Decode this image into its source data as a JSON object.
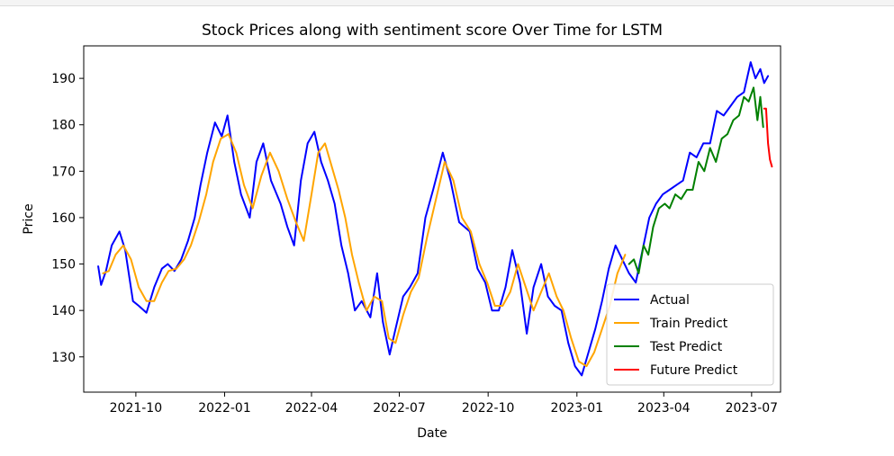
{
  "chart_data": {
    "type": "line",
    "title": "Stock Prices along with sentiment score Over Time for LSTM",
    "xlabel": "Date",
    "ylabel": "Price",
    "x_range": [
      "2021-08-08",
      "2023-07-31"
    ],
    "ylim": [
      122.4,
      197.0
    ],
    "x_ticks": [
      "2021-10",
      "2022-01",
      "2022-04",
      "2022-07",
      "2022-10",
      "2023-01",
      "2023-04",
      "2023-07"
    ],
    "y_ticks": [
      130,
      140,
      150,
      160,
      170,
      180,
      190
    ],
    "grid": false,
    "legend_placement": "lower right",
    "series": [
      {
        "name": "Actual",
        "color": "#0000ff",
        "x": [
          "2021-08-23",
          "2021-08-26",
          "2021-08-31",
          "2021-09-06",
          "2021-09-14",
          "2021-09-20",
          "2021-09-28",
          "2021-10-04",
          "2021-10-12",
          "2021-10-20",
          "2021-10-28",
          "2021-11-03",
          "2021-11-10",
          "2021-11-17",
          "2021-11-24",
          "2021-12-01",
          "2021-12-07",
          "2021-12-14",
          "2021-12-22",
          "2021-12-29",
          "2022-01-04",
          "2022-01-11",
          "2022-01-18",
          "2022-01-27",
          "2022-02-03",
          "2022-02-10",
          "2022-02-18",
          "2022-02-28",
          "2022-03-07",
          "2022-03-14",
          "2022-03-21",
          "2022-03-28",
          "2022-04-04",
          "2022-04-11",
          "2022-04-18",
          "2022-04-25",
          "2022-05-02",
          "2022-05-09",
          "2022-05-16",
          "2022-05-23",
          "2022-06-01",
          "2022-06-08",
          "2022-06-14",
          "2022-06-21",
          "2022-06-27",
          "2022-07-05",
          "2022-07-12",
          "2022-07-20",
          "2022-07-28",
          "2022-08-05",
          "2022-08-15",
          "2022-08-23",
          "2022-09-01",
          "2022-09-12",
          "2022-09-20",
          "2022-09-28",
          "2022-10-05",
          "2022-10-12",
          "2022-10-19",
          "2022-10-26",
          "2022-11-03",
          "2022-11-10",
          "2022-11-17",
          "2022-11-25",
          "2022-12-02",
          "2022-12-09",
          "2022-12-16",
          "2022-12-23",
          "2022-12-30",
          "2023-01-06",
          "2023-01-13",
          "2023-01-20",
          "2023-01-27",
          "2023-02-03",
          "2023-02-10",
          "2023-02-17",
          "2023-02-24",
          "2023-03-03",
          "2023-03-10",
          "2023-03-17",
          "2023-03-24",
          "2023-03-31",
          "2023-04-07",
          "2023-04-14",
          "2023-04-21",
          "2023-04-28",
          "2023-05-05",
          "2023-05-12",
          "2023-05-19",
          "2023-05-26",
          "2023-06-02",
          "2023-06-09",
          "2023-06-16",
          "2023-06-23",
          "2023-06-30",
          "2023-07-05",
          "2023-07-10",
          "2023-07-14",
          "2023-07-18"
        ],
        "values": [
          149.5,
          145.5,
          148.5,
          154,
          157,
          153,
          142,
          141,
          139.5,
          145,
          149,
          150,
          148.5,
          151,
          155,
          160,
          167,
          174,
          180.5,
          177.5,
          182,
          172,
          165,
          160,
          172,
          176,
          168,
          163,
          158,
          154,
          168,
          176,
          178.5,
          172,
          168,
          163,
          154,
          148,
          140,
          142,
          138.5,
          148,
          137.5,
          130.5,
          136,
          143,
          145,
          148,
          160,
          166,
          174,
          168,
          159,
          157,
          149,
          146,
          140,
          140,
          145,
          153,
          146,
          135,
          145,
          150,
          143,
          141,
          140,
          133,
          128,
          126,
          131,
          136,
          142,
          149,
          154,
          151,
          148,
          146,
          153,
          160,
          163,
          165,
          166,
          167,
          168,
          174,
          173,
          176,
          176,
          183,
          182,
          184,
          186,
          187,
          193.5,
          190,
          192,
          189,
          190.5
        ]
      },
      {
        "name": "Train Predict",
        "color": "#ffa500",
        "x": [
          "2021-08-28",
          "2021-09-03",
          "2021-09-10",
          "2021-09-18",
          "2021-09-26",
          "2021-10-04",
          "2021-10-12",
          "2021-10-20",
          "2021-10-28",
          "2021-11-04",
          "2021-11-12",
          "2021-11-20",
          "2021-11-27",
          "2021-12-05",
          "2021-12-13",
          "2021-12-20",
          "2021-12-28",
          "2022-01-05",
          "2022-01-13",
          "2022-01-21",
          "2022-01-30",
          "2022-02-08",
          "2022-02-17",
          "2022-02-26",
          "2022-03-07",
          "2022-03-16",
          "2022-03-24",
          "2022-04-01",
          "2022-04-08",
          "2022-04-15",
          "2022-04-22",
          "2022-04-29",
          "2022-05-06",
          "2022-05-13",
          "2022-05-20",
          "2022-05-28",
          "2022-06-05",
          "2022-06-13",
          "2022-06-20",
          "2022-06-27",
          "2022-07-05",
          "2022-07-13",
          "2022-07-21",
          "2022-07-30",
          "2022-08-08",
          "2022-08-17",
          "2022-08-26",
          "2022-09-04",
          "2022-09-13",
          "2022-09-22",
          "2022-09-30",
          "2022-10-08",
          "2022-10-16",
          "2022-10-24",
          "2022-11-01",
          "2022-11-09",
          "2022-11-17",
          "2022-11-25",
          "2022-12-03",
          "2022-12-11",
          "2022-12-18",
          "2022-12-26",
          "2023-01-03",
          "2023-01-11",
          "2023-01-19",
          "2023-01-27",
          "2023-02-04",
          "2023-02-12",
          "2023-02-20"
        ],
        "values": [
          148,
          148.5,
          152,
          154,
          151,
          145,
          142,
          142,
          146,
          148.5,
          149,
          151,
          154,
          159,
          165,
          172,
          177,
          178,
          174,
          167,
          162,
          169,
          174,
          170,
          164,
          159,
          155,
          165,
          174,
          176,
          171,
          166,
          160,
          152,
          146,
          140,
          143,
          142,
          134,
          133,
          139,
          144,
          147,
          156,
          164,
          172,
          168,
          160,
          157,
          150,
          146,
          141,
          141,
          144,
          150,
          145,
          140,
          144,
          148,
          143,
          140,
          134,
          129,
          128,
          131,
          136,
          141,
          148,
          152
        ]
      },
      {
        "name": "Test Predict",
        "color": "#008000",
        "x": [
          "2023-02-24",
          "2023-03-01",
          "2023-03-06",
          "2023-03-11",
          "2023-03-16",
          "2023-03-21",
          "2023-03-27",
          "2023-04-02",
          "2023-04-07",
          "2023-04-13",
          "2023-04-19",
          "2023-04-25",
          "2023-05-01",
          "2023-05-07",
          "2023-05-13",
          "2023-05-19",
          "2023-05-25",
          "2023-05-31",
          "2023-06-06",
          "2023-06-12",
          "2023-06-18",
          "2023-06-23",
          "2023-06-28",
          "2023-07-03",
          "2023-07-07",
          "2023-07-10",
          "2023-07-13"
        ],
        "values": [
          150,
          151,
          148,
          154,
          152,
          158,
          162,
          163,
          162,
          165,
          164,
          166,
          166,
          172,
          170,
          175,
          172,
          177,
          178,
          181,
          182,
          186,
          185,
          188,
          181,
          186,
          179.5
        ]
      },
      {
        "name": "Future Predict",
        "color": "#ff0000",
        "x": [
          "2023-07-14",
          "2023-07-16",
          "2023-07-18",
          "2023-07-20",
          "2023-07-22"
        ],
        "values": [
          183.5,
          183.5,
          176,
          172.5,
          171
        ]
      }
    ]
  }
}
